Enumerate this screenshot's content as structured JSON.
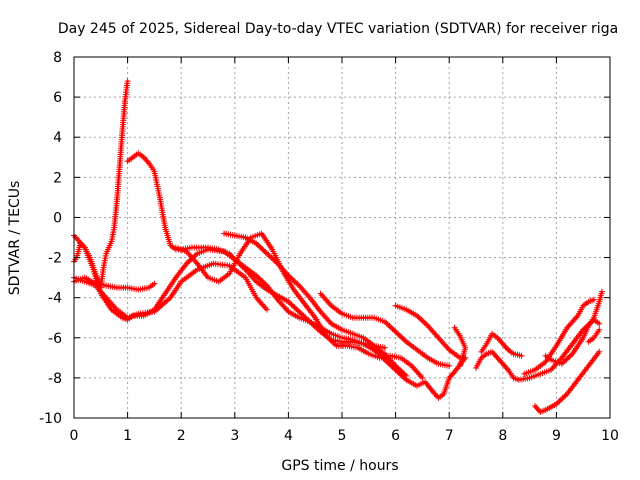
{
  "chart_data": {
    "type": "scatter",
    "title": "Day 245 of 2025, Sidereal Day-to-day VTEC variation (SDTVAR) for receiver riga",
    "xlabel": "GPS time / hours",
    "ylabel": "SDTVAR / TECUs",
    "xlim": [
      0,
      10
    ],
    "ylim": [
      -10,
      8
    ],
    "xticks": [
      0,
      1,
      2,
      3,
      4,
      5,
      6,
      7,
      8,
      9,
      10
    ],
    "yticks": [
      -10,
      -8,
      -6,
      -4,
      -2,
      0,
      2,
      4,
      6,
      8
    ],
    "grid": true,
    "marker": "+",
    "color": "#ff0000",
    "series": [
      {
        "name": "track-1",
        "points": [
          [
            0.0,
            -2.2
          ],
          [
            0.05,
            -2.0
          ],
          [
            0.12,
            -1.3
          ],
          [
            0.2,
            -1.5
          ],
          [
            0.3,
            -2.0
          ],
          [
            0.4,
            -2.8
          ],
          [
            0.5,
            -3.5
          ],
          [
            0.55,
            -2.5
          ],
          [
            0.6,
            -1.8
          ],
          [
            0.7,
            -1.2
          ],
          [
            0.75,
            -0.5
          ],
          [
            0.8,
            0.8
          ],
          [
            0.85,
            2.5
          ],
          [
            0.9,
            4.2
          ],
          [
            0.95,
            5.8
          ],
          [
            1.0,
            6.8
          ]
        ]
      },
      {
        "name": "track-2",
        "points": [
          [
            0.0,
            -3.2
          ],
          [
            0.2,
            -3.0
          ],
          [
            0.4,
            -3.3
          ],
          [
            0.6,
            -3.4
          ],
          [
            0.8,
            -3.5
          ],
          [
            1.0,
            -3.5
          ],
          [
            1.2,
            -3.6
          ],
          [
            1.4,
            -3.5
          ],
          [
            1.5,
            -3.3
          ]
        ]
      },
      {
        "name": "track-3",
        "points": [
          [
            0.0,
            -3.0
          ],
          [
            0.2,
            -3.2
          ],
          [
            0.4,
            -3.4
          ],
          [
            0.6,
            -4.0
          ],
          [
            0.8,
            -4.6
          ],
          [
            1.0,
            -5.0
          ],
          [
            1.2,
            -4.8
          ],
          [
            1.5,
            -4.7
          ],
          [
            1.8,
            -4.0
          ],
          [
            2.0,
            -3.2
          ],
          [
            2.3,
            -2.6
          ],
          [
            2.6,
            -2.3
          ],
          [
            2.9,
            -2.4
          ],
          [
            3.2,
            -3.0
          ],
          [
            3.4,
            -4.0
          ],
          [
            3.6,
            -4.6
          ]
        ]
      },
      {
        "name": "track-4",
        "points": [
          [
            0.0,
            -0.9
          ],
          [
            0.2,
            -1.5
          ],
          [
            0.35,
            -2.5
          ],
          [
            0.5,
            -3.8
          ],
          [
            0.7,
            -4.6
          ],
          [
            0.9,
            -5.0
          ],
          [
            1.0,
            -5.1
          ],
          [
            1.1,
            -4.9
          ],
          [
            1.3,
            -4.9
          ],
          [
            1.5,
            -4.6
          ],
          [
            1.7,
            -3.8
          ],
          [
            1.9,
            -3.0
          ],
          [
            2.1,
            -2.3
          ],
          [
            2.3,
            -1.8
          ],
          [
            2.5,
            -1.6
          ],
          [
            2.8,
            -1.7
          ],
          [
            3.0,
            -2.1
          ],
          [
            3.2,
            -2.6
          ],
          [
            3.4,
            -3.2
          ],
          [
            3.6,
            -3.6
          ],
          [
            3.8,
            -3.9
          ],
          [
            4.0,
            -4.2
          ],
          [
            4.2,
            -4.7
          ],
          [
            4.4,
            -5.2
          ],
          [
            4.6,
            -5.7
          ],
          [
            4.8,
            -6.1
          ],
          [
            5.0,
            -6.2
          ],
          [
            5.2,
            -6.2
          ],
          [
            5.4,
            -6.3
          ],
          [
            5.6,
            -6.6
          ],
          [
            5.8,
            -7.1
          ],
          [
            6.0,
            -7.6
          ],
          [
            6.2,
            -8.1
          ],
          [
            6.4,
            -8.4
          ],
          [
            6.55,
            -8.2
          ],
          [
            6.7,
            -8.7
          ],
          [
            6.8,
            -9.0
          ],
          [
            6.9,
            -8.8
          ],
          [
            7.0,
            -8.0
          ],
          [
            7.1,
            -7.7
          ],
          [
            7.3,
            -7.0
          ]
        ]
      },
      {
        "name": "track-5",
        "points": [
          [
            1.0,
            2.8
          ],
          [
            1.1,
            3.0
          ],
          [
            1.2,
            3.2
          ],
          [
            1.3,
            3.0
          ],
          [
            1.4,
            2.7
          ],
          [
            1.5,
            2.3
          ],
          [
            1.6,
            1.0
          ],
          [
            1.7,
            -0.5
          ],
          [
            1.8,
            -1.4
          ],
          [
            1.9,
            -1.6
          ],
          [
            2.0,
            -1.6
          ],
          [
            2.2,
            -1.5
          ],
          [
            2.5,
            -1.5
          ],
          [
            2.7,
            -1.6
          ],
          [
            2.9,
            -1.8
          ],
          [
            3.0,
            -2.1
          ],
          [
            3.2,
            -2.5
          ],
          [
            3.4,
            -2.9
          ],
          [
            3.6,
            -3.4
          ],
          [
            3.8,
            -4.1
          ],
          [
            4.0,
            -4.7
          ],
          [
            4.2,
            -5.0
          ],
          [
            4.4,
            -5.2
          ],
          [
            4.6,
            -5.5
          ],
          [
            4.8,
            -5.8
          ],
          [
            5.0,
            -6.0
          ],
          [
            5.2,
            -6.1
          ],
          [
            5.4,
            -6.3
          ],
          [
            5.6,
            -6.5
          ],
          [
            5.8,
            -6.8
          ],
          [
            6.0,
            -7.4
          ],
          [
            6.2,
            -7.9
          ]
        ]
      },
      {
        "name": "track-6",
        "points": [
          [
            1.9,
            -1.5
          ],
          [
            2.1,
            -1.7
          ],
          [
            2.3,
            -2.3
          ],
          [
            2.5,
            -3.0
          ],
          [
            2.7,
            -3.2
          ],
          [
            2.9,
            -2.8
          ],
          [
            3.1,
            -1.8
          ],
          [
            3.3,
            -1.0
          ],
          [
            3.5,
            -0.8
          ],
          [
            3.7,
            -1.6
          ],
          [
            3.9,
            -2.7
          ],
          [
            4.1,
            -3.6
          ],
          [
            4.3,
            -4.3
          ],
          [
            4.5,
            -5.0
          ],
          [
            4.7,
            -5.9
          ],
          [
            4.9,
            -6.4
          ],
          [
            5.1,
            -6.4
          ],
          [
            5.3,
            -6.5
          ],
          [
            5.5,
            -6.8
          ],
          [
            5.7,
            -7.0
          ],
          [
            5.9,
            -6.9
          ],
          [
            6.1,
            -7.0
          ],
          [
            6.3,
            -7.4
          ],
          [
            6.5,
            -8.0
          ]
        ]
      },
      {
        "name": "track-7",
        "points": [
          [
            2.8,
            -0.8
          ],
          [
            3.0,
            -0.9
          ],
          [
            3.2,
            -1.0
          ],
          [
            3.4,
            -1.3
          ],
          [
            3.6,
            -1.8
          ],
          [
            3.8,
            -2.3
          ],
          [
            4.0,
            -2.9
          ],
          [
            4.2,
            -3.4
          ],
          [
            4.4,
            -4.0
          ],
          [
            4.6,
            -4.7
          ],
          [
            4.8,
            -5.3
          ],
          [
            5.0,
            -5.6
          ],
          [
            5.2,
            -5.8
          ],
          [
            5.4,
            -6.0
          ],
          [
            5.6,
            -6.4
          ],
          [
            5.8,
            -6.5
          ]
        ]
      },
      {
        "name": "track-8",
        "points": [
          [
            4.6,
            -3.8
          ],
          [
            4.8,
            -4.4
          ],
          [
            5.0,
            -4.8
          ],
          [
            5.2,
            -5.0
          ],
          [
            5.4,
            -5.0
          ],
          [
            5.6,
            -5.0
          ],
          [
            5.8,
            -5.2
          ],
          [
            6.0,
            -5.7
          ],
          [
            6.2,
            -6.2
          ],
          [
            6.4,
            -6.6
          ],
          [
            6.6,
            -7.0
          ],
          [
            6.8,
            -7.3
          ],
          [
            7.0,
            -7.4
          ]
        ]
      },
      {
        "name": "track-9",
        "points": [
          [
            6.0,
            -4.4
          ],
          [
            6.2,
            -4.6
          ],
          [
            6.4,
            -4.9
          ],
          [
            6.6,
            -5.4
          ],
          [
            6.8,
            -6.0
          ],
          [
            7.0,
            -6.6
          ],
          [
            7.2,
            -7.0
          ],
          [
            7.3,
            -7.0
          ]
        ]
      },
      {
        "name": "track-10",
        "points": [
          [
            7.1,
            -5.5
          ],
          [
            7.2,
            -5.9
          ],
          [
            7.3,
            -6.5
          ],
          [
            7.25,
            -7.0
          ],
          [
            7.2,
            -7.4
          ]
        ]
      },
      {
        "name": "track-11",
        "points": [
          [
            7.6,
            -6.7
          ],
          [
            7.7,
            -6.3
          ],
          [
            7.8,
            -5.8
          ],
          [
            7.9,
            -6.0
          ],
          [
            8.0,
            -6.3
          ],
          [
            8.1,
            -6.6
          ],
          [
            8.2,
            -6.8
          ],
          [
            8.35,
            -6.9
          ]
        ]
      },
      {
        "name": "track-12",
        "points": [
          [
            7.5,
            -7.5
          ],
          [
            7.6,
            -7.0
          ],
          [
            7.7,
            -6.8
          ],
          [
            7.8,
            -6.7
          ],
          [
            7.9,
            -7.0
          ],
          [
            8.0,
            -7.3
          ],
          [
            8.1,
            -7.6
          ],
          [
            8.2,
            -8.0
          ],
          [
            8.3,
            -8.1
          ],
          [
            8.5,
            -8.0
          ],
          [
            8.7,
            -7.8
          ],
          [
            8.9,
            -7.6
          ],
          [
            9.1,
            -7.0
          ],
          [
            9.3,
            -6.3
          ],
          [
            9.5,
            -5.6
          ],
          [
            9.7,
            -5.1
          ],
          [
            9.8,
            -5.3
          ]
        ]
      },
      {
        "name": "track-13",
        "points": [
          [
            8.8,
            -6.9
          ],
          [
            8.9,
            -7.1
          ],
          [
            9.1,
            -7.3
          ],
          [
            9.3,
            -6.8
          ],
          [
            9.5,
            -6.0
          ],
          [
            9.6,
            -5.4
          ],
          [
            9.7,
            -5.0
          ],
          [
            9.8,
            -4.2
          ],
          [
            9.85,
            -3.7
          ]
        ]
      },
      {
        "name": "track-14",
        "points": [
          [
            8.4,
            -7.8
          ],
          [
            8.6,
            -7.6
          ],
          [
            8.8,
            -7.2
          ],
          [
            9.0,
            -6.4
          ],
          [
            9.2,
            -5.5
          ],
          [
            9.4,
            -4.9
          ],
          [
            9.5,
            -4.4
          ],
          [
            9.6,
            -4.2
          ],
          [
            9.7,
            -4.1
          ]
        ]
      },
      {
        "name": "track-15",
        "points": [
          [
            8.6,
            -9.4
          ],
          [
            8.7,
            -9.7
          ],
          [
            8.8,
            -9.6
          ],
          [
            9.0,
            -9.3
          ],
          [
            9.2,
            -8.8
          ],
          [
            9.4,
            -8.1
          ],
          [
            9.6,
            -7.4
          ],
          [
            9.8,
            -6.7
          ]
        ]
      },
      {
        "name": "track-16",
        "points": [
          [
            9.6,
            -6.2
          ],
          [
            9.7,
            -6.0
          ],
          [
            9.8,
            -5.6
          ]
        ]
      }
    ]
  }
}
